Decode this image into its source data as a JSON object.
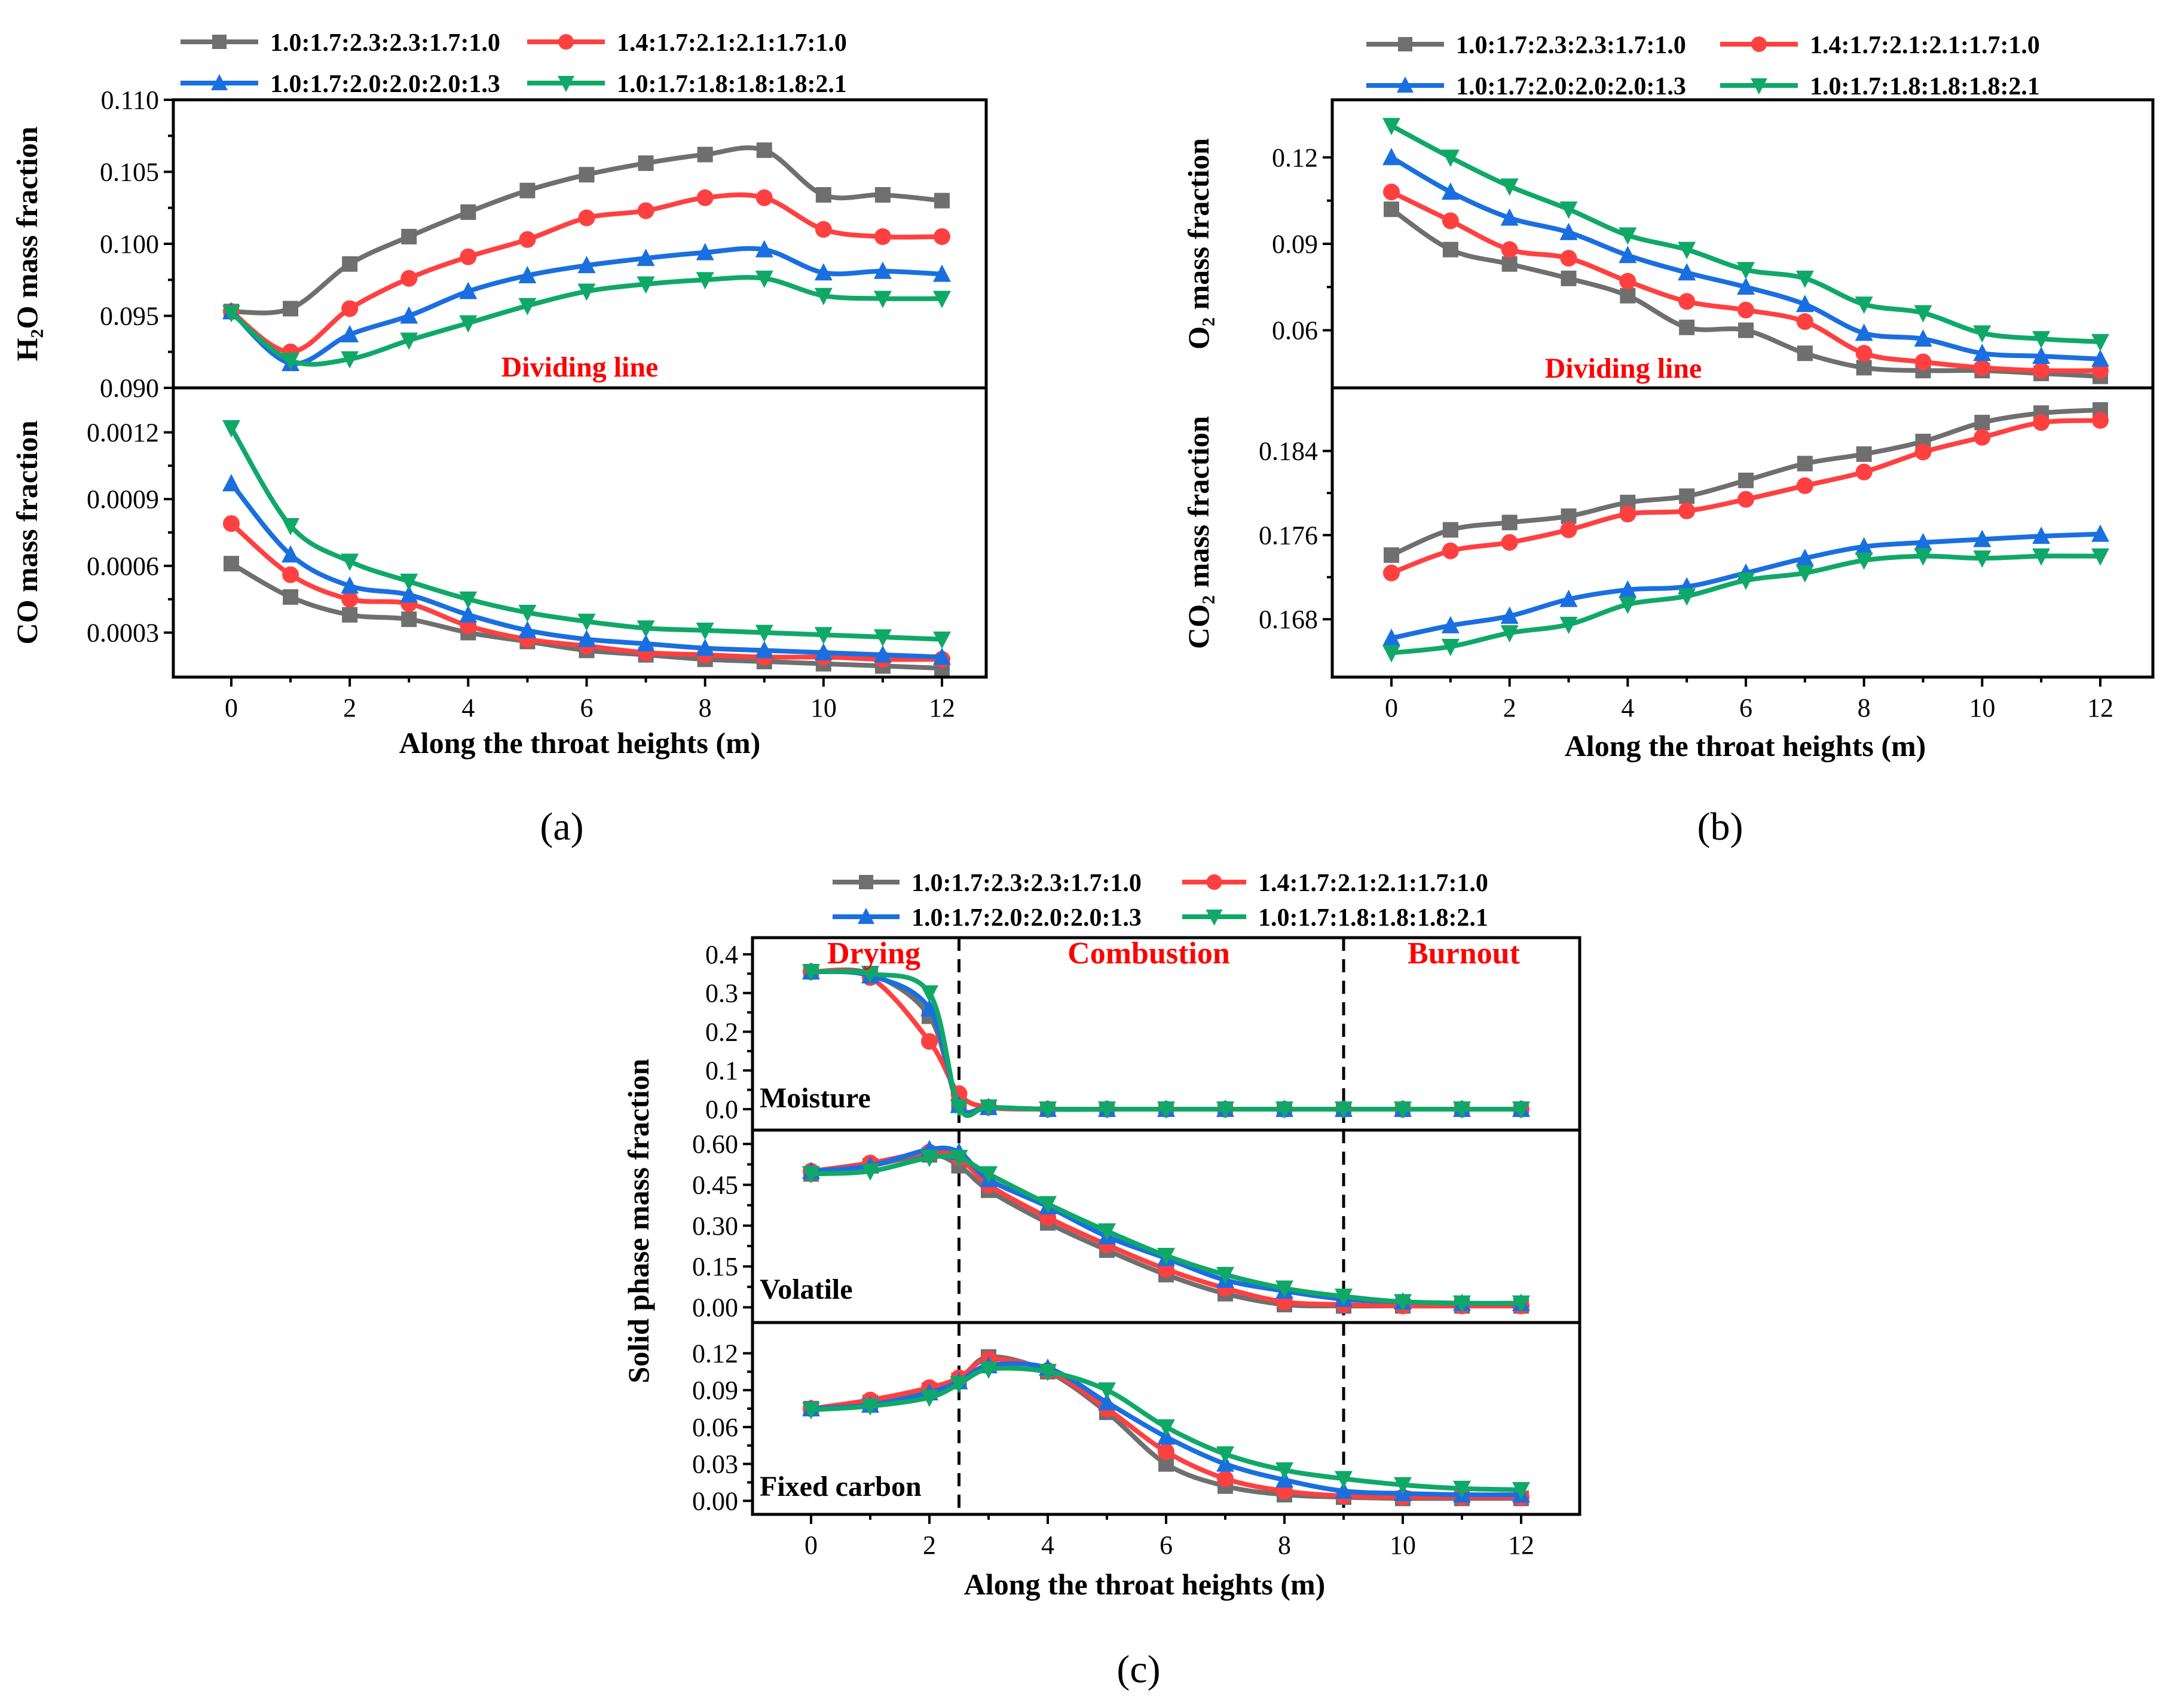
{
  "series_styles": [
    {
      "name": "1.0:1.7:2.3:2.3:1.7:1.0",
      "color": "#6f6f6f",
      "marker": "square"
    },
    {
      "name": "1.4:1.7:2.1:2.1:1.7:1.0",
      "color": "#ff4040",
      "marker": "circle"
    },
    {
      "name": "1.0:1.7:2.0:2.0:2.0:1.3",
      "color": "#1a6fe0",
      "marker": "triangle-up"
    },
    {
      "name": "1.0:1.7:1.8:1.8:1.8:2.1",
      "color": "#10a868",
      "marker": "triangle-down"
    }
  ],
  "chart_data": [
    {
      "type": "line",
      "panel_label": "(a)",
      "xlabel": "Along the throat heights (m)",
      "x": [
        0,
        1,
        2,
        3,
        4,
        5,
        6,
        7,
        8,
        9,
        10,
        11,
        12
      ],
      "xlim": [
        -1,
        12.7
      ],
      "xticks": [
        0,
        2,
        4,
        6,
        8,
        10,
        12
      ],
      "annotation": "Dividing line",
      "legend": "top",
      "subplots": [
        {
          "ylabel": "H₂O mass fraction",
          "ylim": [
            0.09,
            0.11
          ],
          "yticks": [
            0.09,
            0.095,
            0.1,
            0.105,
            0.11
          ],
          "tick_decimals": 3,
          "series": [
            {
              "name": "1.0:1.7:2.3:2.3:1.7:1.0",
              "values": [
                0.0953,
                0.0955,
                0.0986,
                0.1005,
                0.1022,
                0.1037,
                0.1048,
                0.1056,
                0.1062,
                0.1065,
                0.1034,
                0.1034,
                0.103
              ]
            },
            {
              "name": "1.4:1.7:2.1:2.1:1.7:1.0",
              "values": [
                0.0953,
                0.0925,
                0.0955,
                0.0976,
                0.0991,
                0.1003,
                0.1018,
                0.1023,
                0.1032,
                0.1032,
                0.101,
                0.1005,
                0.1005
              ]
            },
            {
              "name": "1.0:1.7:2.0:2.0:2.0:1.3",
              "values": [
                0.0953,
                0.0917,
                0.0937,
                0.095,
                0.0967,
                0.0978,
                0.0985,
                0.099,
                0.0994,
                0.0996,
                0.098,
                0.0981,
                0.0979
              ]
            },
            {
              "name": "1.0:1.7:1.8:1.8:1.8:2.1",
              "values": [
                0.0952,
                0.0919,
                0.092,
                0.0933,
                0.0945,
                0.0957,
                0.0967,
                0.0972,
                0.0975,
                0.0976,
                0.0964,
                0.0962,
                0.0962
              ]
            }
          ]
        },
        {
          "ylabel": "CO mass fraction",
          "ylim": [
            0.0001,
            0.0014
          ],
          "yticks": [
            0.0003,
            0.0006,
            0.0009,
            0.0012
          ],
          "tick_decimals": 4,
          "series": [
            {
              "name": "1.0:1.7:2.3:2.3:1.7:1.0",
              "values": [
                0.00061,
                0.00046,
                0.00038,
                0.00036,
                0.0003,
                0.00026,
                0.00022,
                0.0002,
                0.00018,
                0.00017,
                0.00016,
                0.00015,
                0.00014
              ]
            },
            {
              "name": "1.4:1.7:2.1:2.1:1.7:1.0",
              "values": [
                0.00079,
                0.00056,
                0.00045,
                0.00043,
                0.00033,
                0.00027,
                0.00024,
                0.00021,
                0.0002,
                0.00019,
                0.00019,
                0.00018,
                0.00018
              ]
            },
            {
              "name": "1.0:1.7:2.0:2.0:2.0:1.3",
              "values": [
                0.00097,
                0.00065,
                0.00051,
                0.00047,
                0.00038,
                0.00031,
                0.00027,
                0.00025,
                0.00023,
                0.00022,
                0.00021,
                0.0002,
                0.00019
              ]
            },
            {
              "name": "1.0:1.7:1.8:1.8:1.8:2.1",
              "values": [
                0.00122,
                0.00078,
                0.00062,
                0.00053,
                0.00045,
                0.00039,
                0.00035,
                0.00032,
                0.00031,
                0.0003,
                0.00029,
                0.00028,
                0.00027
              ]
            }
          ]
        }
      ]
    },
    {
      "type": "line",
      "panel_label": "(b)",
      "xlabel": "Along the throat heights (m)",
      "x": [
        0,
        1,
        2,
        3,
        4,
        5,
        6,
        7,
        8,
        9,
        10,
        11,
        12
      ],
      "xlim": [
        -1,
        12.7
      ],
      "xticks": [
        0,
        2,
        4,
        6,
        8,
        10,
        12
      ],
      "annotation": "Dividing line",
      "legend": "top",
      "subplots": [
        {
          "ylabel": "O₂ mass fraction",
          "ylim": [
            0.04,
            0.14
          ],
          "yticks": [
            0.06,
            0.09,
            0.12
          ],
          "tick_decimals": 2,
          "series": [
            {
              "name": "1.0:1.7:2.3:2.3:1.7:1.0",
              "values": [
                0.102,
                0.088,
                0.083,
                0.078,
                0.072,
                0.061,
                0.06,
                0.052,
                0.047,
                0.046,
                0.046,
                0.045,
                0.044
              ]
            },
            {
              "name": "1.4:1.7:2.1:2.1:1.7:1.0",
              "values": [
                0.108,
                0.098,
                0.088,
                0.085,
                0.077,
                0.07,
                0.067,
                0.063,
                0.052,
                0.049,
                0.047,
                0.046,
                0.046
              ]
            },
            {
              "name": "1.0:1.7:2.0:2.0:2.0:1.3",
              "values": [
                0.12,
                0.108,
                0.099,
                0.094,
                0.086,
                0.08,
                0.075,
                0.069,
                0.059,
                0.057,
                0.052,
                0.051,
                0.05
              ]
            },
            {
              "name": "1.0:1.7:1.8:1.8:1.8:2.1",
              "values": [
                0.131,
                0.12,
                0.11,
                0.102,
                0.093,
                0.088,
                0.081,
                0.078,
                0.069,
                0.066,
                0.059,
                0.057,
                0.056
              ]
            }
          ]
        },
        {
          "ylabel": "CO₂ mass fraction",
          "ylim": [
            0.1625,
            0.19
          ],
          "yticks": [
            0.168,
            0.176,
            0.184
          ],
          "tick_decimals": 3,
          "series": [
            {
              "name": "1.0:1.7:2.3:2.3:1.7:1.0",
              "values": [
                0.1741,
                0.1765,
                0.1772,
                0.1778,
                0.1791,
                0.1797,
                0.1812,
                0.1828,
                0.1837,
                0.1849,
                0.1867,
                0.1876,
                0.1879
              ]
            },
            {
              "name": "1.4:1.7:2.1:2.1:1.7:1.0",
              "values": [
                0.1724,
                0.1745,
                0.1753,
                0.1765,
                0.178,
                0.1783,
                0.1794,
                0.1807,
                0.182,
                0.1839,
                0.1853,
                0.1867,
                0.1869
              ]
            },
            {
              "name": "1.0:1.7:2.0:2.0:2.0:1.3",
              "values": [
                0.1662,
                0.1674,
                0.1683,
                0.1699,
                0.1708,
                0.1711,
                0.1724,
                0.1738,
                0.1749,
                0.1753,
                0.1756,
                0.1759,
                0.1761
              ]
            },
            {
              "name": "1.0:1.7:1.8:1.8:1.8:2.1",
              "values": [
                0.1648,
                0.1654,
                0.1667,
                0.1675,
                0.1694,
                0.1702,
                0.1717,
                0.1724,
                0.1736,
                0.174,
                0.1738,
                0.174,
                0.174
              ]
            }
          ]
        }
      ]
    },
    {
      "type": "line",
      "panel_label": "(c)",
      "xlabel": "Along the throat heights (m)",
      "ylabel": "Solid phase mass fraction",
      "x": [
        0,
        1,
        2,
        2.5,
        3,
        4,
        5,
        6,
        7,
        8,
        9,
        10,
        11,
        12
      ],
      "xlim": [
        -1,
        12.7
      ],
      "xticks": [
        0,
        2,
        4,
        6,
        8,
        10,
        12
      ],
      "stage_boundaries": [
        2.5,
        9
      ],
      "stages": [
        "Drying",
        "Combustion",
        "Burnout"
      ],
      "legend": "top",
      "subplots": [
        {
          "label": "Moisture",
          "ylim": [
            -0.054,
            0.443
          ],
          "yticks": [
            0.0,
            0.1,
            0.2,
            0.3,
            0.4
          ],
          "tick_decimals": 1,
          "series": [
            {
              "name": "1.0:1.7:2.3:2.3:1.7:1.0",
              "values": [
                0.355,
                0.35,
                0.24,
                0.01,
                0.005,
                0,
                0,
                0,
                0,
                0,
                0,
                0,
                0,
                0
              ]
            },
            {
              "name": "1.4:1.7:2.1:2.1:1.7:1.0",
              "values": [
                0.355,
                0.34,
                0.175,
                0.04,
                0.005,
                0,
                0,
                0,
                0,
                0,
                0,
                0,
                0,
                0
              ]
            },
            {
              "name": "1.0:1.7:2.0:2.0:2.0:1.3",
              "values": [
                0.355,
                0.345,
                0.26,
                0.01,
                0.005,
                0,
                0,
                0,
                0,
                0,
                0,
                0,
                0,
                0
              ]
            },
            {
              "name": "1.0:1.7:1.8:1.8:1.8:2.1",
              "values": [
                0.355,
                0.35,
                0.3,
                0.005,
                0.005,
                0,
                0,
                0,
                0,
                0,
                0,
                0,
                0,
                0
              ]
            }
          ]
        },
        {
          "label": "Volatile",
          "ylim": [
            -0.056,
            0.651
          ],
          "yticks": [
            0.0,
            0.15,
            0.3,
            0.45,
            0.6
          ],
          "tick_decimals": 2,
          "series": [
            {
              "name": "1.0:1.7:2.3:2.3:1.7:1.0",
              "values": [
                0.49,
                0.52,
                0.56,
                0.52,
                0.43,
                0.31,
                0.21,
                0.12,
                0.05,
                0.01,
                0.005,
                0.005,
                0.005,
                0.005
              ]
            },
            {
              "name": "1.4:1.7:2.1:2.1:1.7:1.0",
              "values": [
                0.5,
                0.53,
                0.57,
                0.55,
                0.45,
                0.33,
                0.23,
                0.14,
                0.07,
                0.02,
                0.01,
                0.005,
                0.005,
                0.005
              ]
            },
            {
              "name": "1.0:1.7:2.0:2.0:2.0:1.3",
              "values": [
                0.5,
                0.52,
                0.58,
                0.57,
                0.47,
                0.37,
                0.26,
                0.18,
                0.1,
                0.06,
                0.03,
                0.02,
                0.015,
                0.015
              ]
            },
            {
              "name": "1.0:1.7:1.8:1.8:1.8:2.1",
              "values": [
                0.49,
                0.5,
                0.55,
                0.55,
                0.49,
                0.38,
                0.28,
                0.19,
                0.12,
                0.07,
                0.04,
                0.02,
                0.015,
                0.015
              ]
            }
          ]
        },
        {
          "label": "Fixed carbon",
          "ylim": [
            -0.011,
            0.145
          ],
          "yticks": [
            0.0,
            0.03,
            0.06,
            0.09,
            0.12
          ],
          "tick_decimals": 2,
          "series": [
            {
              "name": "1.0:1.7:2.3:2.3:1.7:1.0",
              "values": [
                0.075,
                0.08,
                0.09,
                0.098,
                0.117,
                0.105,
                0.072,
                0.03,
                0.012,
                0.005,
                0.003,
                0.002,
                0.002,
                0.002
              ]
            },
            {
              "name": "1.4:1.7:2.1:2.1:1.7:1.0",
              "values": [
                0.075,
                0.082,
                0.092,
                0.1,
                0.115,
                0.106,
                0.075,
                0.04,
                0.018,
                0.008,
                0.004,
                0.003,
                0.003,
                0.003
              ]
            },
            {
              "name": "1.0:1.7:2.0:2.0:2.0:1.3",
              "values": [
                0.075,
                0.078,
                0.088,
                0.097,
                0.11,
                0.108,
                0.08,
                0.052,
                0.03,
                0.017,
                0.008,
                0.006,
                0.005,
                0.005
              ]
            },
            {
              "name": "1.0:1.7:1.8:1.8:1.8:2.1",
              "values": [
                0.074,
                0.077,
                0.084,
                0.095,
                0.107,
                0.105,
                0.09,
                0.06,
                0.038,
                0.025,
                0.018,
                0.013,
                0.01,
                0.009
              ]
            }
          ]
        }
      ]
    }
  ]
}
